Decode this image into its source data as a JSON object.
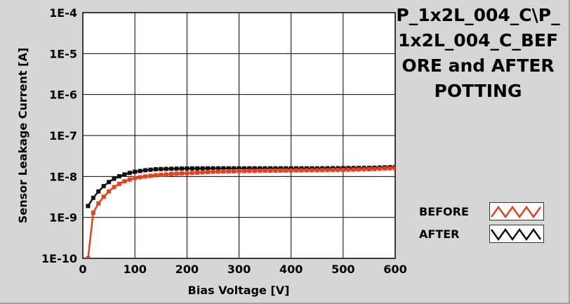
{
  "chart_data": {
    "type": "line",
    "title": "P_1x2L_004_C\\P_1x2L_004_C_BEFORE and AFTER POTTING",
    "xlabel": "Bias Voltage [V]",
    "ylabel": "Sensor Leakage Current [A]",
    "xlim": [
      0,
      600
    ],
    "ylim": [
      1e-10,
      0.0001
    ],
    "yscale": "log",
    "grid": true,
    "legend_position": "right",
    "xticks": [
      0,
      100,
      200,
      300,
      400,
      500,
      600
    ],
    "xtick_labels": [
      "0",
      "100",
      "200",
      "300",
      "400",
      "500",
      "600"
    ],
    "yticks": [
      1e-10,
      1e-09,
      1e-08,
      1e-07,
      1e-06,
      1e-05,
      0.0001
    ],
    "ytick_labels": [
      "1E-10",
      "1E-9",
      "1E-8",
      "1E-7",
      "1E-6",
      "1E-5",
      "1E-4"
    ],
    "series": [
      {
        "name": "BEFORE",
        "color": "#e8401c",
        "x": [
          10,
          20,
          30,
          40,
          50,
          60,
          70,
          80,
          90,
          100,
          120,
          140,
          160,
          180,
          200,
          250,
          300,
          350,
          400,
          450,
          500,
          550,
          600
        ],
        "y": [
          5e-11,
          1.3e-09,
          2.2e-09,
          3.2e-09,
          4.3e-09,
          5.5e-09,
          6.6e-09,
          7.6e-09,
          8.4e-09,
          9.1e-09,
          1e-08,
          1.07e-08,
          1.12e-08,
          1.17e-08,
          1.2e-08,
          1.3e-08,
          1.35e-08,
          1.38e-08,
          1.4e-08,
          1.42e-08,
          1.45e-08,
          1.5e-08,
          1.6e-08
        ]
      },
      {
        "name": "AFTER",
        "color": "#111111",
        "x": [
          10,
          20,
          30,
          40,
          50,
          60,
          70,
          80,
          90,
          100,
          120,
          140,
          160,
          180,
          200,
          250,
          300,
          350,
          400,
          450,
          500,
          550,
          600
        ],
        "y": [
          1.9e-09,
          3e-09,
          4.3e-09,
          5.8e-09,
          7.3e-09,
          8.8e-09,
          1.01e-08,
          1.12e-08,
          1.22e-08,
          1.3e-08,
          1.42e-08,
          1.5e-08,
          1.53e-08,
          1.55e-08,
          1.57e-08,
          1.58e-08,
          1.58e-08,
          1.58e-08,
          1.58e-08,
          1.58e-08,
          1.6e-08,
          1.62e-08,
          1.7e-08
        ]
      }
    ]
  },
  "colors": {
    "plot_background": "#ffffff",
    "panel_background": "#d6d6d6",
    "grid": "#000000"
  }
}
